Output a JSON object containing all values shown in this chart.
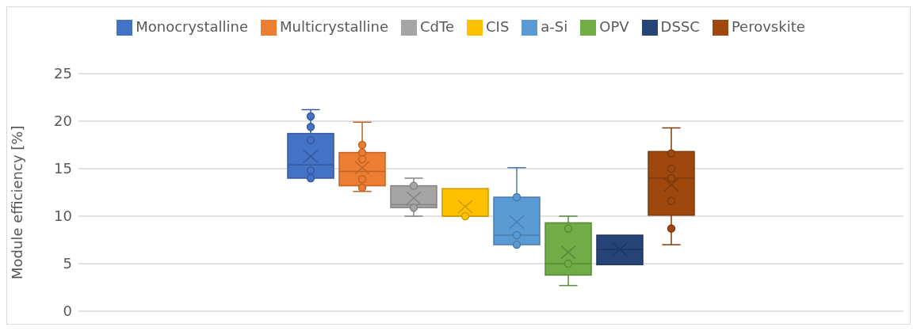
{
  "chart_data": {
    "type": "box",
    "ylabel": "Module efficiency [%]",
    "categories": [
      null
    ],
    "ylim": [
      0,
      25
    ],
    "yticks": [
      0,
      5,
      10,
      15,
      20,
      25
    ],
    "grid": "y",
    "legend": "top",
    "tick_labels": "y",
    "marker": "circle",
    "series": [
      {
        "name": "Monocrystalline",
        "color": "#4472c4",
        "boxes": [
          {
            "low": 14.0,
            "q1": 14.0,
            "median": 15.4,
            "q3": 18.7,
            "high": 21.2,
            "mean": 16.3,
            "outliers": [
              20.5,
              19.4,
              18.0,
              14.8,
              14.0
            ]
          }
        ]
      },
      {
        "name": "Multicrystalline",
        "color": "#ed7d31",
        "boxes": [
          {
            "low": 12.6,
            "q1": 13.2,
            "median": 14.7,
            "q3": 16.7,
            "high": 19.9,
            "mean": 15.1,
            "outliers": [
              17.5,
              16.7,
              16.0,
              13.9,
              13.0
            ]
          }
        ]
      },
      {
        "name": "CdTe",
        "color": "#a5a5a5",
        "boxes": [
          {
            "low": 10.0,
            "q1": 10.9,
            "median": 11.2,
            "q3": 13.2,
            "high": 14.0,
            "mean": 11.9,
            "outliers": [
              13.2,
              10.9
            ]
          }
        ]
      },
      {
        "name": "CIS",
        "color": "#ffc000",
        "boxes": [
          {
            "low": 10.0,
            "q1": 10.0,
            "median": 10.0,
            "q3": 12.9,
            "high": 12.9,
            "mean": 11.0,
            "outliers": [
              10.0
            ]
          }
        ]
      },
      {
        "name": "a-Si",
        "color": "#5b9bd5",
        "boxes": [
          {
            "low": 7.0,
            "q1": 7.0,
            "median": 8.0,
            "q3": 12.0,
            "high": 15.1,
            "mean": 9.4,
            "outliers": [
              12.0,
              8.0,
              7.0
            ]
          }
        ]
      },
      {
        "name": "OPV",
        "color": "#70ad47",
        "boxes": [
          {
            "low": 2.7,
            "q1": 3.8,
            "median": 5.0,
            "q3": 9.3,
            "high": 10.0,
            "mean": 6.2,
            "outliers": [
              8.7,
              5.0
            ]
          }
        ]
      },
      {
        "name": "DSSC",
        "color": "#264478",
        "boxes": [
          {
            "low": 4.9,
            "q1": 4.9,
            "median": 6.5,
            "q3": 8.0,
            "high": 8.0,
            "mean": 6.5
          }
        ]
      },
      {
        "name": "Perovskite",
        "color": "#9e480e",
        "boxes": [
          {
            "low": 7.0,
            "q1": 10.1,
            "median": 14.0,
            "q3": 16.8,
            "high": 19.3,
            "mean": 13.3,
            "outliers": [
              16.6,
              15.0,
              14.0,
              11.6,
              8.7
            ]
          }
        ]
      }
    ]
  }
}
